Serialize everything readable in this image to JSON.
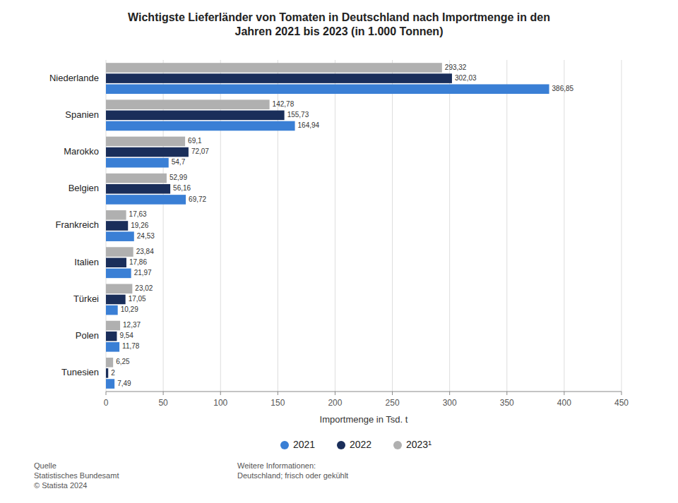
{
  "chart_data": {
    "type": "bar",
    "orientation": "horizontal",
    "title": "Wichtigste Lieferländer von Tomaten in Deutschland nach Importmenge in den\nJahren 2021 bis 2023 (in 1.000 Tonnen)",
    "x_label": "Importmenge in Tsd. t",
    "categories": [
      "Niederlande",
      "Spanien",
      "Marokko",
      "Belgien",
      "Frankreich",
      "Italien",
      "Türkei",
      "Polen",
      "Tunesien"
    ],
    "series": [
      {
        "name": "2021",
        "color": "#3a7fd5",
        "values": [
          386.85,
          164.94,
          54.7,
          69.72,
          24.53,
          21.97,
          10.29,
          11.78,
          7.49
        ],
        "value_labels": [
          "386,85",
          "164,94",
          "54,7",
          "69,72",
          "24,53",
          "21,97",
          "10,29",
          "11,78",
          "7,49"
        ]
      },
      {
        "name": "2022",
        "color": "#1a2e5a",
        "values": [
          302.03,
          155.73,
          72.07,
          56.16,
          19.26,
          17.86,
          17.05,
          9.54,
          2.0
        ],
        "value_labels": [
          "302,03",
          "155,73",
          "72,07",
          "56,16",
          "19,26",
          "17,86",
          "17,05",
          "9,54",
          "2"
        ]
      },
      {
        "name": "2023¹",
        "color": "#b0b0b0",
        "values": [
          293.32,
          142.78,
          69.1,
          52.99,
          17.63,
          23.84,
          23.02,
          12.37,
          6.25
        ],
        "value_labels": [
          "293,32",
          "142,78",
          "69,1",
          "52,99",
          "17,63",
          "23,84",
          "23,02",
          "12,37",
          "6,25"
        ]
      }
    ],
    "xlim": [
      0,
      450
    ],
    "xticks": [
      0,
      50,
      100,
      150,
      200,
      250,
      300,
      350,
      400,
      450
    ],
    "grid": true,
    "data_labels": true,
    "legend": "bottom",
    "annotations": [
      "Quelle\nStatistisches Bundesamt\n© Statista 2024",
      "Weitere Informationen:\nDeutschland; frisch oder gekühlt"
    ]
  }
}
